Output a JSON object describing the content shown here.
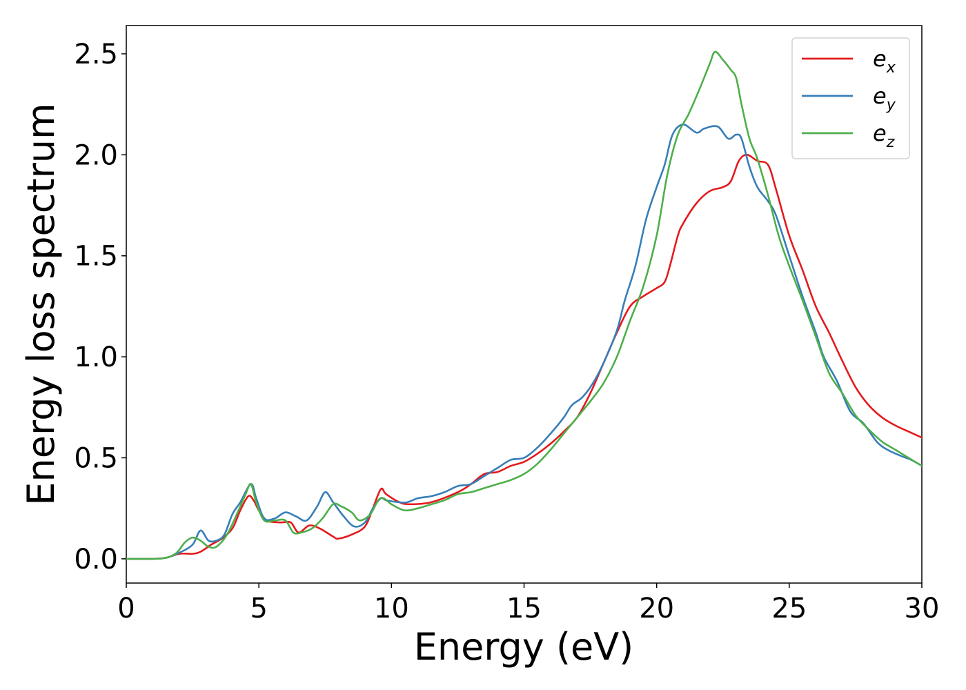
{
  "chart_data": {
    "type": "line",
    "title": "",
    "xlabel": "Energy (eV)",
    "ylabel": "Energy loss spectrum",
    "xlim": [
      0,
      30
    ],
    "ylim": [
      -0.12,
      2.64
    ],
    "xticks": [
      0,
      5,
      10,
      15,
      20,
      25,
      30
    ],
    "xtick_labels": [
      "0",
      "5",
      "10",
      "15",
      "20",
      "25",
      "30"
    ],
    "yticks": [
      0.0,
      0.5,
      1.0,
      1.5,
      2.0,
      2.5
    ],
    "ytick_labels": [
      "0.0",
      "0.5",
      "1.0",
      "1.5",
      "2.0",
      "2.5"
    ],
    "grid": false,
    "legend_position": "top-right",
    "series": [
      {
        "name": "e",
        "subscript": "x",
        "color": "#e41a1c",
        "points": [
          [
            0,
            0
          ],
          [
            1,
            0
          ],
          [
            1.5,
            0.005
          ],
          [
            2,
            0.025
          ],
          [
            2.5,
            0.025
          ],
          [
            2.8,
            0.035
          ],
          [
            3.2,
            0.07
          ],
          [
            3.6,
            0.1
          ],
          [
            4.0,
            0.15
          ],
          [
            4.3,
            0.24
          ],
          [
            4.6,
            0.31
          ],
          [
            4.8,
            0.29
          ],
          [
            5.0,
            0.24
          ],
          [
            5.3,
            0.19
          ],
          [
            5.8,
            0.18
          ],
          [
            6.2,
            0.18
          ],
          [
            6.5,
            0.13
          ],
          [
            6.9,
            0.165
          ],
          [
            7.3,
            0.15
          ],
          [
            7.8,
            0.11
          ],
          [
            8.0,
            0.1
          ],
          [
            8.5,
            0.12
          ],
          [
            9.0,
            0.16
          ],
          [
            9.3,
            0.25
          ],
          [
            9.6,
            0.345
          ],
          [
            9.8,
            0.32
          ],
          [
            10.3,
            0.28
          ],
          [
            10.7,
            0.27
          ],
          [
            11.5,
            0.28
          ],
          [
            12.5,
            0.33
          ],
          [
            13.0,
            0.37
          ],
          [
            13.5,
            0.42
          ],
          [
            14.0,
            0.43
          ],
          [
            14.5,
            0.46
          ],
          [
            15.0,
            0.48
          ],
          [
            15.5,
            0.52
          ],
          [
            16.0,
            0.57
          ],
          [
            16.5,
            0.63
          ],
          [
            17.0,
            0.7
          ],
          [
            17.5,
            0.82
          ],
          [
            18.0,
            0.97
          ],
          [
            18.5,
            1.12
          ],
          [
            19.0,
            1.25
          ],
          [
            19.5,
            1.3
          ],
          [
            20.0,
            1.34
          ],
          [
            20.3,
            1.37
          ],
          [
            20.5,
            1.45
          ],
          [
            20.8,
            1.6
          ],
          [
            21.0,
            1.66
          ],
          [
            21.5,
            1.76
          ],
          [
            22.0,
            1.82
          ],
          [
            22.5,
            1.84
          ],
          [
            22.8,
            1.87
          ],
          [
            23.1,
            1.97
          ],
          [
            23.4,
            2.0
          ],
          [
            23.8,
            1.97
          ],
          [
            24.2,
            1.95
          ],
          [
            24.5,
            1.83
          ],
          [
            25.0,
            1.6
          ],
          [
            25.5,
            1.43
          ],
          [
            26.0,
            1.25
          ],
          [
            26.5,
            1.12
          ],
          [
            27.0,
            0.98
          ],
          [
            27.5,
            0.85
          ],
          [
            28.0,
            0.76
          ],
          [
            28.5,
            0.7
          ],
          [
            29.0,
            0.66
          ],
          [
            29.5,
            0.63
          ],
          [
            30.0,
            0.6
          ]
        ]
      },
      {
        "name": "e",
        "subscript": "y",
        "color": "#377eb8",
        "points": [
          [
            0,
            0
          ],
          [
            1,
            0
          ],
          [
            1.5,
            0.005
          ],
          [
            2,
            0.03
          ],
          [
            2.5,
            0.07
          ],
          [
            2.8,
            0.14
          ],
          [
            3.1,
            0.09
          ],
          [
            3.4,
            0.09
          ],
          [
            3.7,
            0.12
          ],
          [
            4.0,
            0.22
          ],
          [
            4.3,
            0.28
          ],
          [
            4.7,
            0.37
          ],
          [
            4.9,
            0.3
          ],
          [
            5.2,
            0.2
          ],
          [
            5.6,
            0.2
          ],
          [
            6.0,
            0.23
          ],
          [
            6.4,
            0.21
          ],
          [
            6.8,
            0.19
          ],
          [
            7.2,
            0.26
          ],
          [
            7.5,
            0.33
          ],
          [
            7.8,
            0.28
          ],
          [
            8.2,
            0.21
          ],
          [
            8.6,
            0.16
          ],
          [
            9.0,
            0.18
          ],
          [
            9.3,
            0.25
          ],
          [
            9.6,
            0.3
          ],
          [
            9.8,
            0.29
          ],
          [
            10.3,
            0.28
          ],
          [
            10.6,
            0.28
          ],
          [
            11.0,
            0.3
          ],
          [
            11.5,
            0.31
          ],
          [
            12.0,
            0.33
          ],
          [
            12.5,
            0.36
          ],
          [
            13.0,
            0.37
          ],
          [
            13.5,
            0.41
          ],
          [
            14.0,
            0.45
          ],
          [
            14.5,
            0.49
          ],
          [
            15.0,
            0.5
          ],
          [
            15.5,
            0.55
          ],
          [
            16.0,
            0.62
          ],
          [
            16.5,
            0.7
          ],
          [
            16.8,
            0.76
          ],
          [
            17.2,
            0.8
          ],
          [
            17.6,
            0.87
          ],
          [
            18.0,
            0.97
          ],
          [
            18.5,
            1.13
          ],
          [
            18.8,
            1.28
          ],
          [
            19.2,
            1.45
          ],
          [
            19.6,
            1.68
          ],
          [
            20.0,
            1.84
          ],
          [
            20.3,
            1.95
          ],
          [
            20.6,
            2.1
          ],
          [
            21.0,
            2.15
          ],
          [
            21.5,
            2.11
          ],
          [
            21.8,
            2.13
          ],
          [
            22.3,
            2.14
          ],
          [
            22.7,
            2.08
          ],
          [
            23.0,
            2.1
          ],
          [
            23.2,
            2.08
          ],
          [
            23.5,
            1.94
          ],
          [
            23.8,
            1.84
          ],
          [
            24.2,
            1.77
          ],
          [
            24.5,
            1.7
          ],
          [
            25.0,
            1.5
          ],
          [
            25.5,
            1.3
          ],
          [
            26.0,
            1.12
          ],
          [
            26.3,
            1.0
          ],
          [
            26.8,
            0.88
          ],
          [
            27.3,
            0.73
          ],
          [
            27.8,
            0.67
          ],
          [
            28.3,
            0.58
          ],
          [
            28.7,
            0.54
          ],
          [
            29.2,
            0.51
          ],
          [
            29.6,
            0.49
          ],
          [
            30.0,
            0.46
          ]
        ]
      },
      {
        "name": "e",
        "subscript": "z",
        "color": "#4daf4a",
        "points": [
          [
            0,
            0
          ],
          [
            1,
            0
          ],
          [
            1.5,
            0.005
          ],
          [
            1.9,
            0.03
          ],
          [
            2.2,
            0.08
          ],
          [
            2.5,
            0.105
          ],
          [
            2.8,
            0.09
          ],
          [
            3.1,
            0.06
          ],
          [
            3.4,
            0.06
          ],
          [
            3.8,
            0.12
          ],
          [
            4.2,
            0.23
          ],
          [
            4.5,
            0.32
          ],
          [
            4.7,
            0.37
          ],
          [
            4.9,
            0.28
          ],
          [
            5.2,
            0.19
          ],
          [
            5.6,
            0.19
          ],
          [
            6.0,
            0.19
          ],
          [
            6.3,
            0.13
          ],
          [
            6.6,
            0.13
          ],
          [
            7.0,
            0.15
          ],
          [
            7.4,
            0.2
          ],
          [
            7.8,
            0.27
          ],
          [
            8.1,
            0.26
          ],
          [
            8.5,
            0.23
          ],
          [
            8.8,
            0.19
          ],
          [
            9.2,
            0.22
          ],
          [
            9.5,
            0.29
          ],
          [
            9.7,
            0.3
          ],
          [
            10.0,
            0.27
          ],
          [
            10.5,
            0.24
          ],
          [
            11.0,
            0.25
          ],
          [
            11.5,
            0.27
          ],
          [
            12.0,
            0.29
          ],
          [
            12.5,
            0.32
          ],
          [
            13.0,
            0.33
          ],
          [
            13.5,
            0.35
          ],
          [
            14.0,
            0.37
          ],
          [
            14.5,
            0.39
          ],
          [
            15.0,
            0.42
          ],
          [
            15.5,
            0.47
          ],
          [
            16.0,
            0.54
          ],
          [
            16.5,
            0.62
          ],
          [
            17.0,
            0.7
          ],
          [
            17.5,
            0.78
          ],
          [
            18.0,
            0.87
          ],
          [
            18.5,
            1.0
          ],
          [
            19.0,
            1.18
          ],
          [
            19.5,
            1.35
          ],
          [
            20.0,
            1.6
          ],
          [
            20.4,
            1.9
          ],
          [
            20.8,
            2.1
          ],
          [
            21.2,
            2.2
          ],
          [
            21.6,
            2.32
          ],
          [
            22.0,
            2.45
          ],
          [
            22.2,
            2.51
          ],
          [
            22.5,
            2.47
          ],
          [
            22.8,
            2.42
          ],
          [
            23.0,
            2.38
          ],
          [
            23.2,
            2.25
          ],
          [
            23.5,
            2.08
          ],
          [
            23.8,
            1.98
          ],
          [
            24.2,
            1.8
          ],
          [
            24.6,
            1.6
          ],
          [
            25.0,
            1.45
          ],
          [
            25.5,
            1.28
          ],
          [
            26.0,
            1.1
          ],
          [
            26.5,
            0.92
          ],
          [
            27.0,
            0.82
          ],
          [
            27.5,
            0.71
          ],
          [
            28.0,
            0.64
          ],
          [
            28.5,
            0.58
          ],
          [
            29.0,
            0.54
          ],
          [
            29.5,
            0.5
          ],
          [
            30.0,
            0.46
          ]
        ]
      }
    ]
  }
}
